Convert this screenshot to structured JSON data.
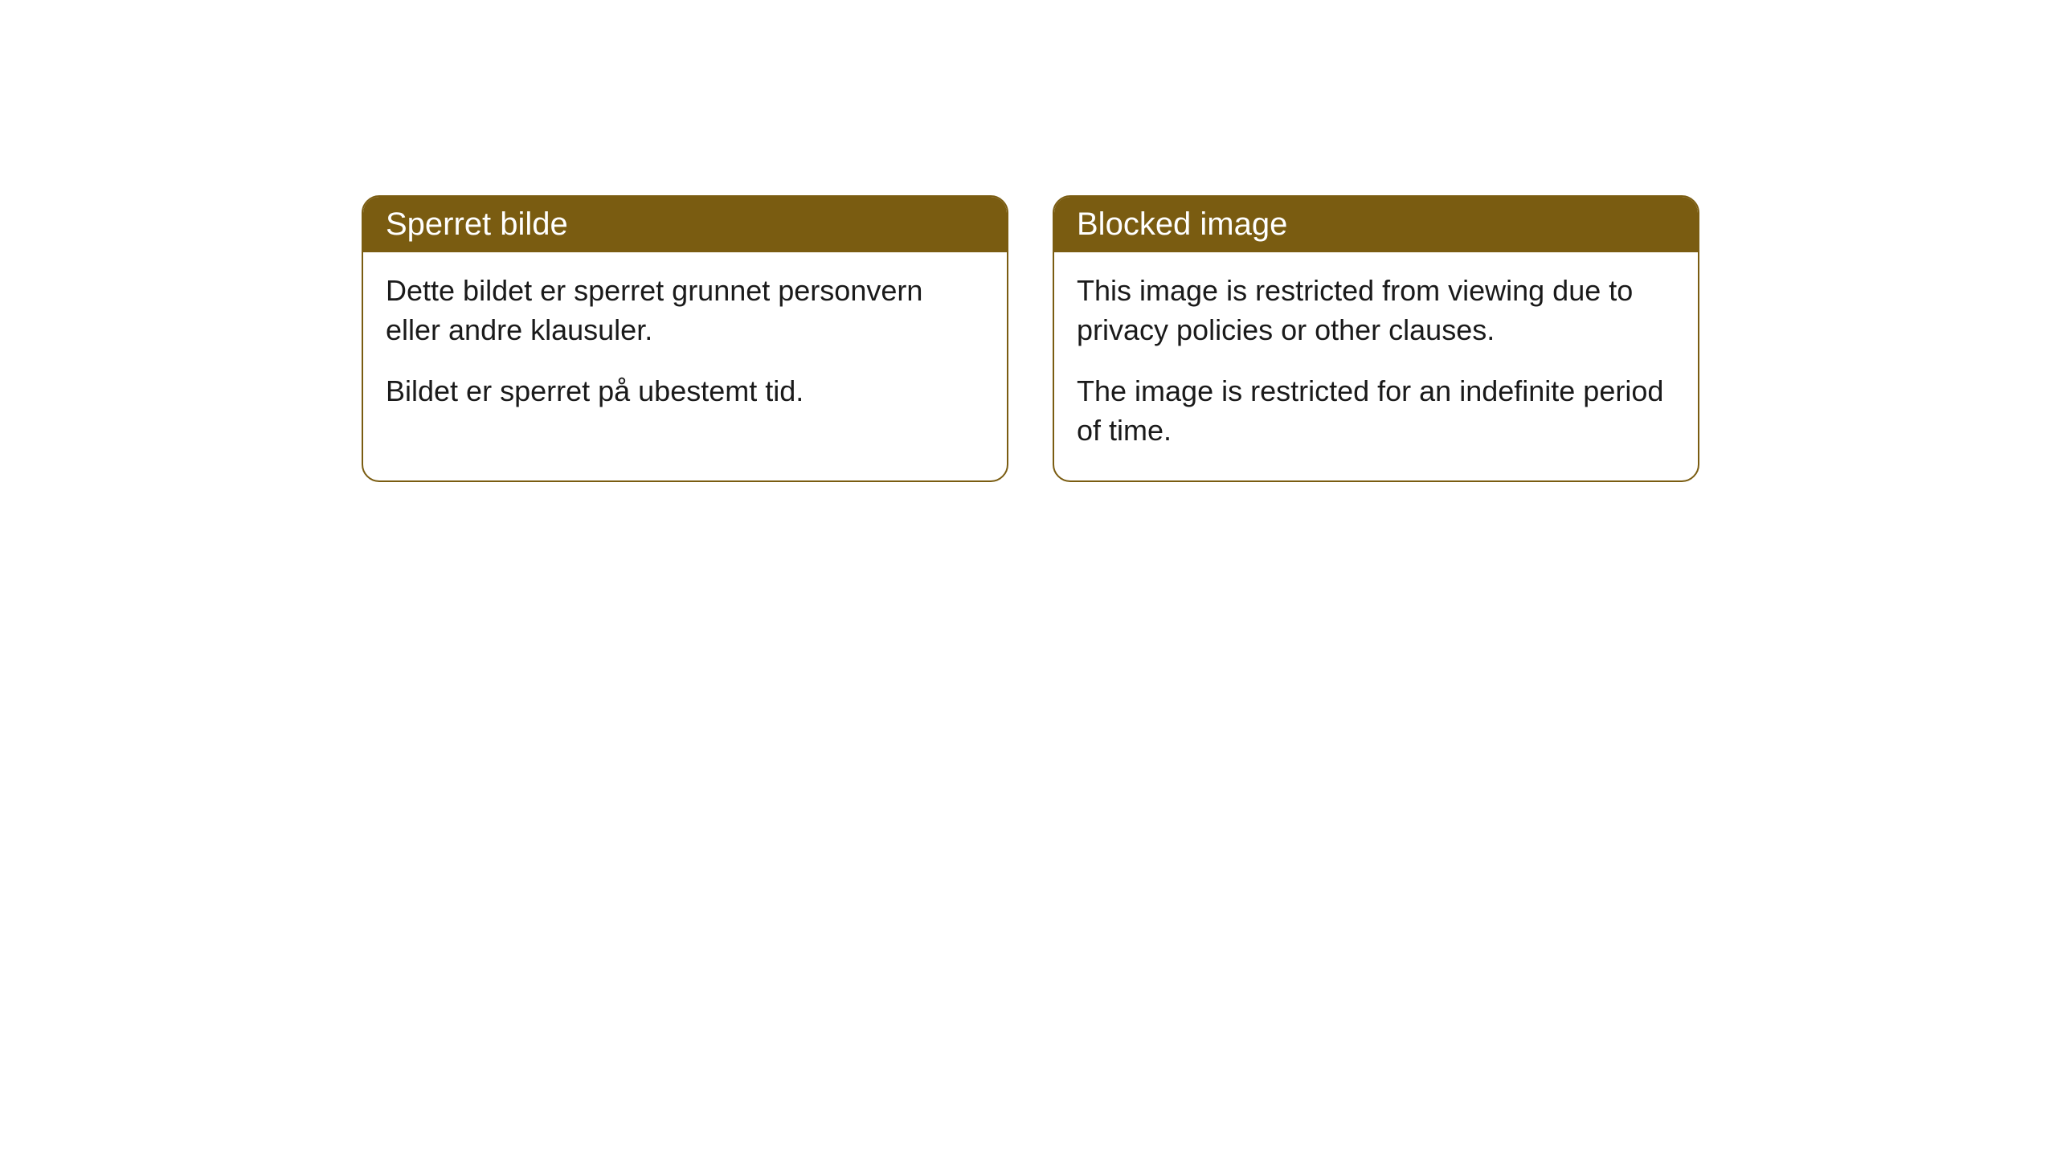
{
  "cards": [
    {
      "title": "Sperret bilde",
      "paragraph1": "Dette bildet er sperret grunnet personvern eller andre klausuler.",
      "paragraph2": "Bildet er sperret på ubestemt tid."
    },
    {
      "title": "Blocked image",
      "paragraph1": "This image is restricted from viewing due to privacy policies or other clauses.",
      "paragraph2": "The image is restricted for an indefinite period of time."
    }
  ],
  "styling": {
    "header_background_color": "#7a5c11",
    "header_text_color": "#ffffff",
    "card_border_color": "#7a5c11",
    "card_background_color": "#ffffff",
    "body_text_color": "#1a1a1a",
    "page_background_color": "#ffffff",
    "card_border_radius": 22,
    "header_fontsize": 40,
    "body_fontsize": 36
  }
}
